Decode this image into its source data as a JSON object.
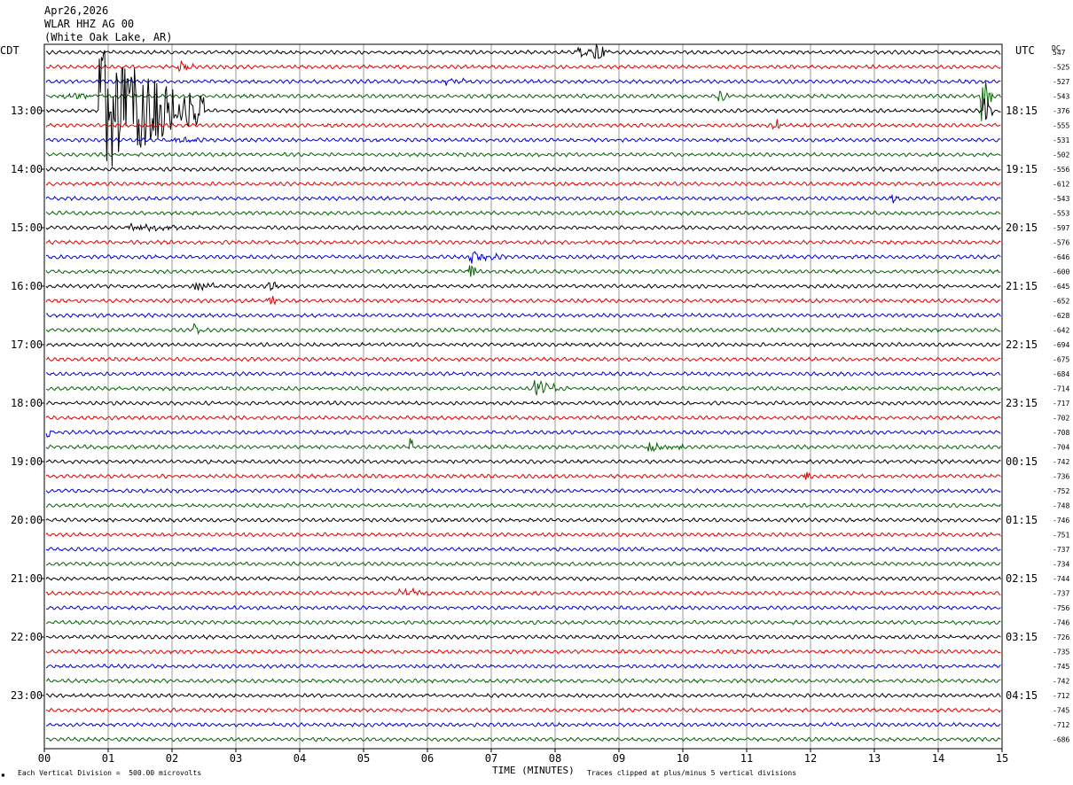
{
  "header": {
    "date": "Apr26,2026",
    "station": "WLAR HHZ AG 00",
    "location": "(White Oak Lake, AR)"
  },
  "left_tz": "CDT",
  "right_tz": "UTC",
  "dc_label": "DC",
  "footer": {
    "scale": "Each Vertical Division =  500.00 microvolts",
    "xlabel": "TIME (MINUTES)",
    "clip_note": "Traces clipped at plus/minus 5 vertical divisions"
  },
  "chart_data": {
    "type": "line",
    "title": "WLAR HHZ AG 00",
    "xlabel": "TIME (MINUTES)",
    "xlim": [
      0,
      15
    ],
    "x_ticks": [
      "00",
      "01",
      "02",
      "03",
      "04",
      "05",
      "06",
      "07",
      "08",
      "09",
      "10",
      "11",
      "12",
      "13",
      "14",
      "15"
    ],
    "trace_colors": [
      "#000000",
      "#e00000",
      "#0000d0",
      "#006400"
    ],
    "left_time_labels": [
      "13:00",
      "14:00",
      "15:00",
      "16:00",
      "17:00",
      "18:00",
      "19:00",
      "20:00",
      "21:00",
      "22:00",
      "23:00"
    ],
    "right_time_labels": [
      "18:15",
      "19:15",
      "20:15",
      "21:15",
      "22:15",
      "23:15",
      "00:15",
      "01:15",
      "02:15",
      "03:15",
      "04:15"
    ],
    "label_start_row": 4,
    "label_row_interval": 4,
    "dc_offsets": [
      "547",
      "-525",
      "-527",
      "-543",
      "-376",
      "-555",
      "-531",
      "-502",
      "-556",
      "-612",
      "-543",
      "-553",
      "-597",
      "-576",
      "-646",
      "-600",
      "-645",
      "-652",
      "-628",
      "-642",
      "-694",
      "-675",
      "-684",
      "-714",
      "-717",
      "-702",
      "-708",
      "-704",
      "-742",
      "-736",
      "-752",
      "-748",
      "-746",
      "-751",
      "-737",
      "-734",
      "-744",
      "-737",
      "-756",
      "-746",
      "-726",
      "-735",
      "-745",
      "-742",
      "-712",
      "-745",
      "-712",
      "-686"
    ],
    "events": [
      {
        "row": 0,
        "minute": 8.4,
        "amp": 0.4,
        "dur": 0.3
      },
      {
        "row": 0,
        "minute": 8.65,
        "amp": 0.6,
        "dur": 0.25
      },
      {
        "row": 1,
        "minute": 2.15,
        "amp": 0.5,
        "dur": 0.2
      },
      {
        "row": 2,
        "minute": 6.3,
        "amp": 0.25,
        "dur": 0.4
      },
      {
        "row": 3,
        "minute": 0.3,
        "amp": 0.25,
        "dur": 1.2
      },
      {
        "row": 3,
        "minute": 14.7,
        "amp": 1.8,
        "dur": 0.15
      },
      {
        "row": 3,
        "minute": 10.6,
        "amp": 0.4,
        "dur": 0.1
      },
      {
        "row": 4,
        "minute": 0.9,
        "amp": 5,
        "dur": 1.6
      },
      {
        "row": 4,
        "minute": 14.75,
        "amp": 1.2,
        "dur": 0.1
      },
      {
        "row": 5,
        "minute": 11.45,
        "amp": 0.5,
        "dur": 0.1
      },
      {
        "row": 6,
        "minute": 2.0,
        "amp": 0.3,
        "dur": 0.5
      },
      {
        "row": 10,
        "minute": 13.3,
        "amp": 0.3,
        "dur": 0.1
      },
      {
        "row": 12,
        "minute": 1.3,
        "amp": 0.25,
        "dur": 1.2
      },
      {
        "row": 14,
        "minute": 6.7,
        "amp": 0.35,
        "dur": 0.6
      },
      {
        "row": 15,
        "minute": 6.7,
        "amp": 0.5,
        "dur": 0.1
      },
      {
        "row": 16,
        "minute": 2.4,
        "amp": 0.5,
        "dur": 0.3
      },
      {
        "row": 16,
        "minute": 3.55,
        "amp": 0.35,
        "dur": 0.1
      },
      {
        "row": 17,
        "minute": 3.55,
        "amp": 0.4,
        "dur": 0.15
      },
      {
        "row": 19,
        "minute": 2.35,
        "amp": 0.4,
        "dur": 0.15
      },
      {
        "row": 23,
        "minute": 7.7,
        "amp": 0.6,
        "dur": 0.4
      },
      {
        "row": 26,
        "minute": 0.05,
        "amp": 0.5,
        "dur": 0.05
      },
      {
        "row": 27,
        "minute": 5.75,
        "amp": 0.6,
        "dur": 0.1
      },
      {
        "row": 27,
        "minute": 9.5,
        "amp": 0.45,
        "dur": 0.5
      },
      {
        "row": 29,
        "minute": 11.95,
        "amp": 0.3,
        "dur": 0.1
      },
      {
        "row": 37,
        "minute": 5.6,
        "amp": 0.35,
        "dur": 0.5
      }
    ]
  }
}
